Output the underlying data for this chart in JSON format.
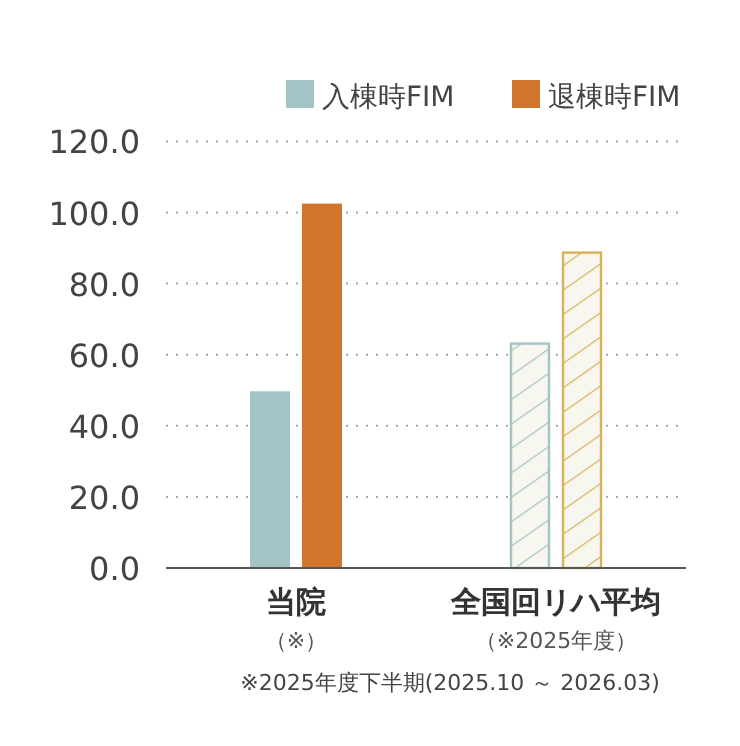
{
  "chart_data": {
    "type": "bar",
    "categories": [
      "当院",
      "全国回リハ平均"
    ],
    "series": [
      {
        "name": "入棟時FIM",
        "color": "#a3c4c4",
        "colors": [
          "#a3c4c4",
          "#a3c4c4"
        ],
        "values": [
          49.7,
          63.4
        ]
      },
      {
        "name": "退棟時FIM",
        "color": "#d0752b",
        "colors": [
          "#d0752b",
          "#d6b25a"
        ],
        "values": [
          102.5,
          89.0
        ]
      }
    ],
    "ylim": [
      0,
      120
    ],
    "yticks": [
      {
        "value": 0,
        "label": "0.0"
      },
      {
        "value": 20,
        "label": "20.0"
      },
      {
        "value": 40,
        "label": "40.0"
      },
      {
        "value": 60,
        "label": "60.0"
      },
      {
        "value": 80,
        "label": "80.0"
      },
      {
        "value": 100,
        "label": "100.0"
      },
      {
        "value": 120,
        "label": "120.0"
      }
    ],
    "grid": "y",
    "legend": "top right",
    "annotations": [
      "（※）",
      "（※2025年度）",
      "※2025年度下半期(2025.10 ～ 2026.03)"
    ]
  }
}
